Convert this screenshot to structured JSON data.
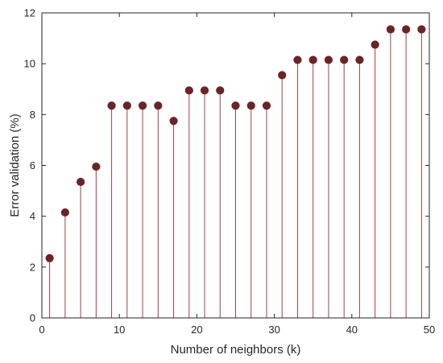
{
  "chart_data": {
    "type": "stem",
    "title": "",
    "xlabel": "Number of neighbors (k)",
    "ylabel": "Error validation (%)",
    "xlim": [
      0,
      50
    ],
    "ylim": [
      0,
      12
    ],
    "xticks": [
      0,
      10,
      20,
      30,
      40,
      50
    ],
    "yticks": [
      0,
      2,
      4,
      6,
      8,
      10,
      12
    ],
    "grid": false,
    "box": true,
    "colors": {
      "stem": "#a0404a",
      "marker": "#6b2427",
      "axis": "#262626"
    },
    "series": [
      {
        "x": [
          1,
          3,
          5,
          7,
          9,
          11,
          13,
          15,
          17,
          19,
          21,
          23,
          25,
          27,
          29,
          31,
          33,
          35,
          37,
          39,
          41,
          43,
          45,
          47,
          49
        ],
        "values": [
          2.35,
          4.15,
          5.35,
          5.95,
          8.35,
          8.35,
          8.35,
          8.35,
          7.75,
          8.95,
          8.95,
          8.95,
          8.35,
          8.35,
          8.35,
          9.55,
          10.15,
          10.15,
          10.15,
          10.15,
          10.15,
          10.75,
          11.35,
          11.35,
          11.35
        ]
      }
    ]
  }
}
